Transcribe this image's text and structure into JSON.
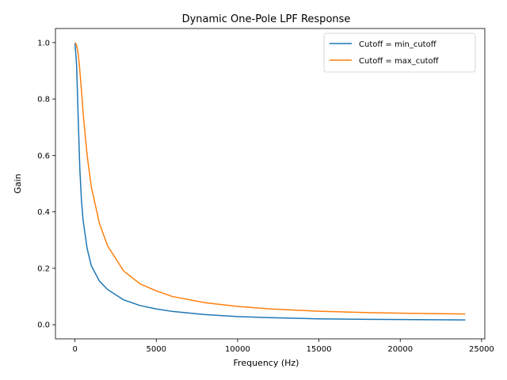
{
  "chart_data": {
    "type": "line",
    "title": "Dynamic One-Pole LPF Response",
    "xlabel": "Frequency (Hz)",
    "ylabel": "Gain",
    "xlim": [
      -1200,
      25200
    ],
    "ylim": [
      -0.05,
      1.05
    ],
    "xticks": [
      0,
      5000,
      10000,
      15000,
      20000,
      25000
    ],
    "xtick_labels": [
      "0",
      "5000",
      "10000",
      "15000",
      "20000",
      "25000"
    ],
    "yticks": [
      0.0,
      0.2,
      0.4,
      0.6,
      0.8,
      1.0
    ],
    "ytick_labels": [
      "0.0",
      "0.2",
      "0.4",
      "0.6",
      "0.8",
      "1.0"
    ],
    "grid": false,
    "legend_position": "top-right",
    "series": [
      {
        "name": "Cutoff = min_cutoff",
        "color": "#1f77b4",
        "x": [
          0,
          100,
          200,
          300,
          400,
          500,
          750,
          1000,
          1500,
          2000,
          3000,
          4000,
          5000,
          6000,
          8000,
          10000,
          12000,
          15000,
          18000,
          21000,
          24000
        ],
        "y": [
          1.0,
          0.92,
          0.73,
          0.55,
          0.44,
          0.37,
          0.27,
          0.21,
          0.155,
          0.125,
          0.088,
          0.068,
          0.056,
          0.047,
          0.036,
          0.029,
          0.025,
          0.021,
          0.019,
          0.018,
          0.017
        ]
      },
      {
        "name": "Cutoff = max_cutoff",
        "color": "#ff7f0e",
        "x": [
          0,
          100,
          200,
          300,
          400,
          500,
          750,
          1000,
          1500,
          2000,
          3000,
          4000,
          5000,
          6000,
          8000,
          10000,
          12000,
          15000,
          18000,
          21000,
          24000
        ],
        "y": [
          1.0,
          0.99,
          0.96,
          0.9,
          0.83,
          0.75,
          0.6,
          0.49,
          0.36,
          0.28,
          0.19,
          0.145,
          0.12,
          0.1,
          0.078,
          0.065,
          0.056,
          0.048,
          0.043,
          0.04,
          0.038
        ]
      }
    ]
  }
}
